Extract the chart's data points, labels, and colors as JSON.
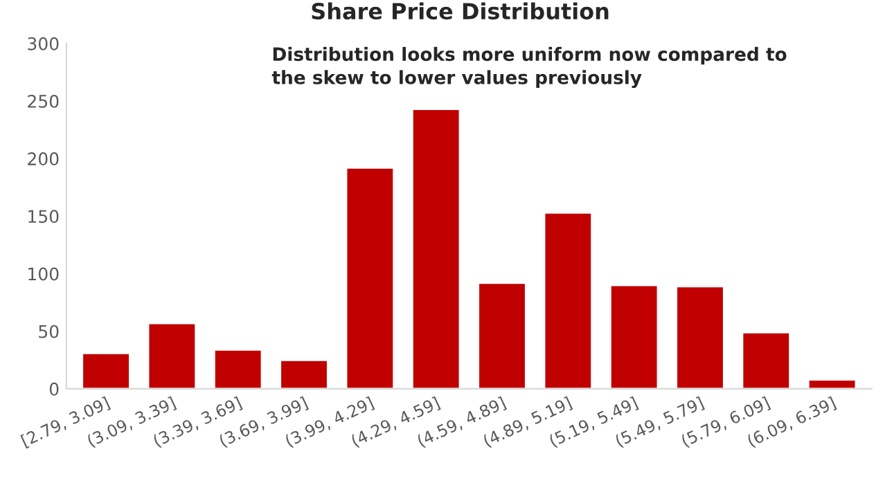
{
  "chart_data": {
    "type": "bar",
    "title": "Share Price Distribution",
    "annotations": [
      "Distribution looks more uniform now compared to\nthe skew to lower values previously"
    ],
    "categories": [
      "[2.79, 3.09]",
      "(3.09, 3.39]",
      "(3.39, 3.69]",
      "(3.69, 3.99]",
      "(3.99, 4.29]",
      "(4.29, 4.59]",
      "(4.59, 4.89]",
      "(4.89, 5.19]",
      "(5.19, 5.49]",
      "(5.49, 5.79]",
      "(5.79, 6.09]",
      "(6.09, 6.39]"
    ],
    "values": [
      31,
      57,
      34,
      25,
      192,
      243,
      92,
      153,
      90,
      89,
      49,
      8
    ],
    "color": "#c00000",
    "ylim": [
      0,
      300
    ],
    "yticks": [
      0,
      50,
      100,
      150,
      200,
      250,
      300
    ],
    "grid": false
  }
}
